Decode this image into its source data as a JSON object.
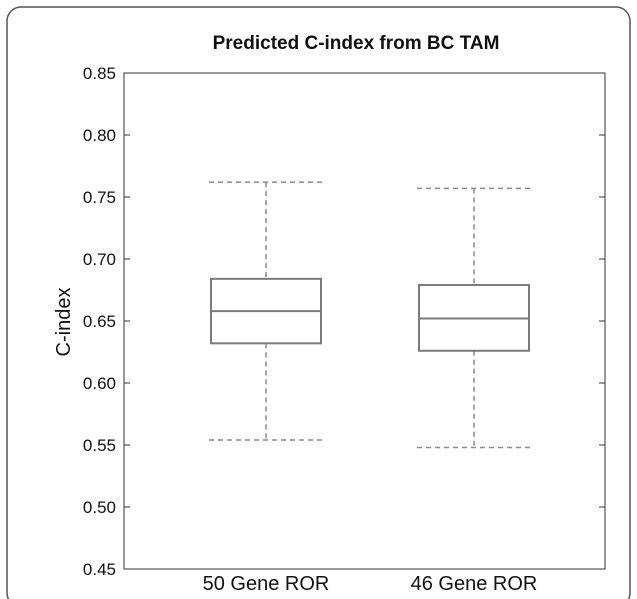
{
  "chart_data": {
    "type": "box",
    "title": "Predicted C-index from BC TAM",
    "xlabel": "",
    "ylabel": "C-index",
    "ylim": [
      0.45,
      0.85
    ],
    "yticks": [
      "0.45",
      "0.50",
      "0.55",
      "0.60",
      "0.65",
      "0.70",
      "0.75",
      "0.80",
      "0.85"
    ],
    "categories": [
      "50 Gene ROR",
      "46 Gene ROR"
    ],
    "boxes": [
      {
        "category": "50 Gene ROR",
        "whisker_low": 0.554,
        "q1": 0.632,
        "median": 0.658,
        "q3": 0.684,
        "whisker_high": 0.762
      },
      {
        "category": "46 Gene ROR",
        "whisker_low": 0.548,
        "q1": 0.626,
        "median": 0.652,
        "q3": 0.679,
        "whisker_high": 0.757
      }
    ],
    "grid": false,
    "colors": {
      "box": "#7a7a7a",
      "whisker": "#8a8a8a",
      "axis": "#333333",
      "frame": "#555555"
    }
  }
}
